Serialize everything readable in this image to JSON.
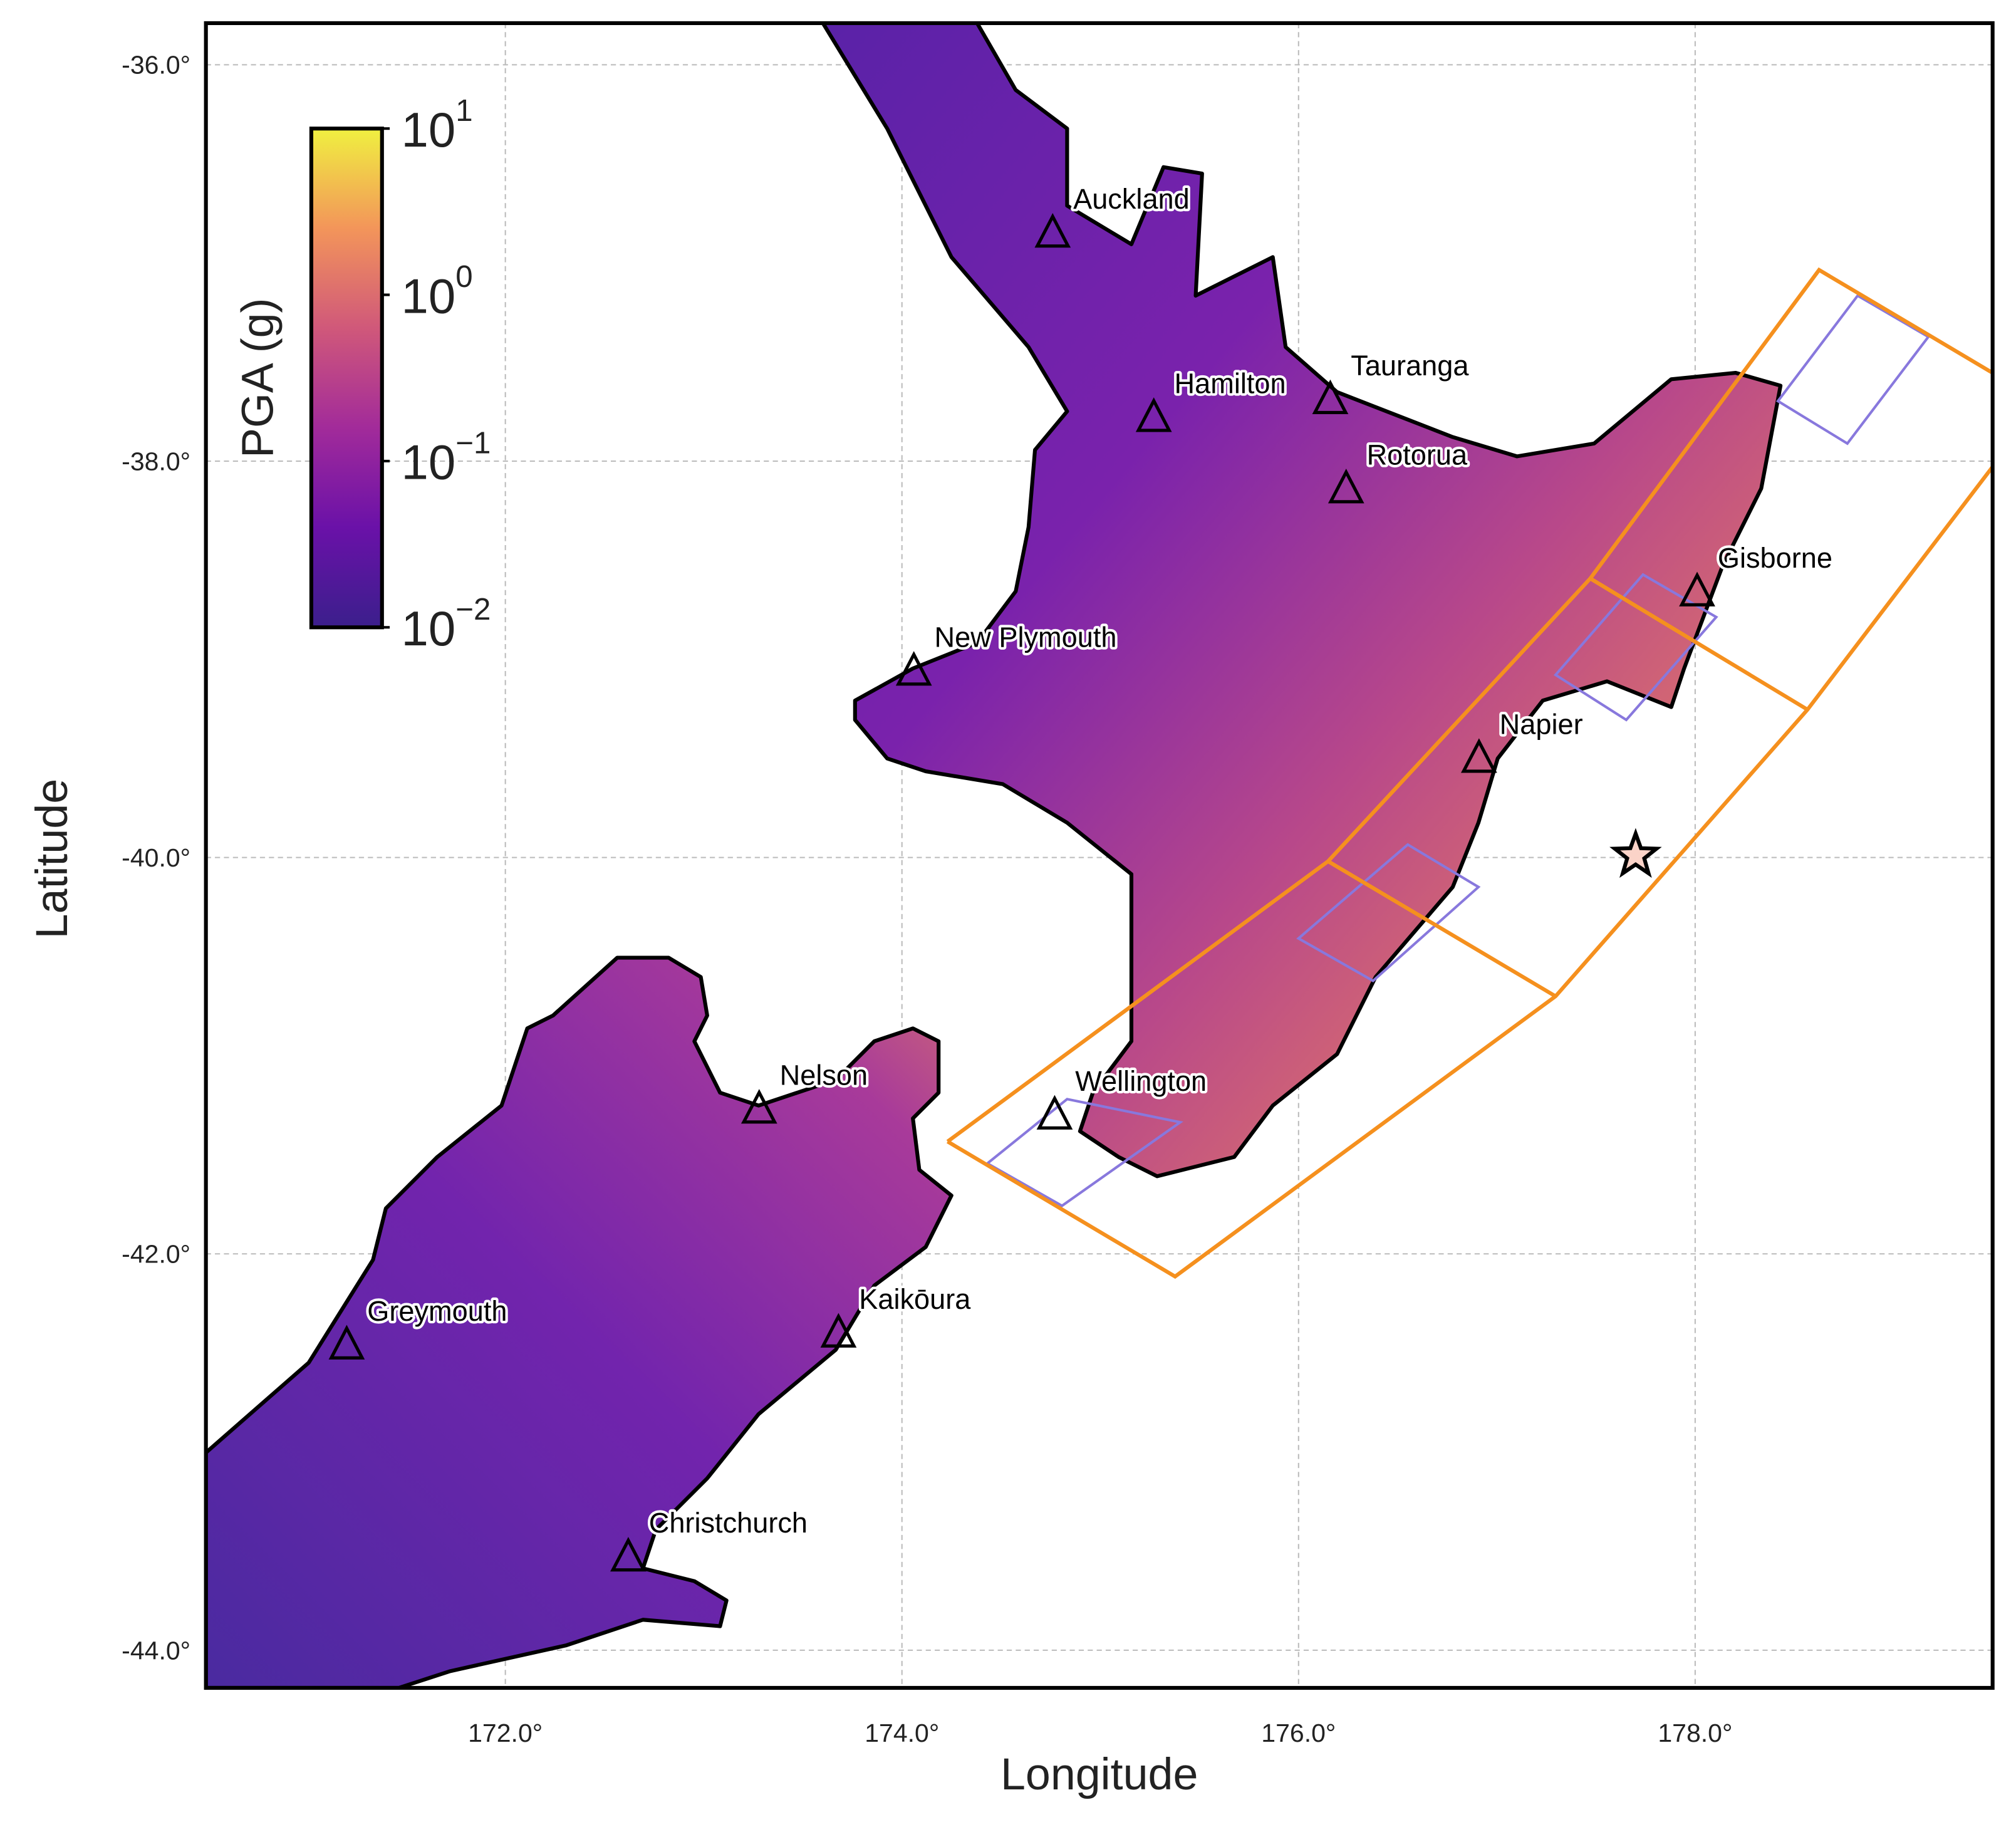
{
  "chart_data": {
    "type": "map",
    "xlabel": "Longitude",
    "ylabel": "Latitude",
    "xlim": [
      170.49,
      179.5
    ],
    "ylim": [
      -44.19,
      -35.79
    ],
    "xticks": [
      {
        "value": 172,
        "label": "172.0°"
      },
      {
        "value": 174,
        "label": "174.0°"
      },
      {
        "value": 176,
        "label": "176.0°"
      },
      {
        "value": 178,
        "label": "178.0°"
      }
    ],
    "yticks": [
      {
        "value": -36,
        "label": "-36.0°"
      },
      {
        "value": -38,
        "label": "-38.0°"
      },
      {
        "value": -40,
        "label": "-40.0°"
      },
      {
        "value": -42,
        "label": "-42.0°"
      },
      {
        "value": -44,
        "label": "-44.0°"
      }
    ],
    "grid": true,
    "cities": [
      {
        "name": "Auckland",
        "lon": 174.76,
        "lat": -36.85
      },
      {
        "name": "Hamilton",
        "lon": 175.27,
        "lat": -37.78
      },
      {
        "name": "Tauranga",
        "lon": 176.16,
        "lat": -37.69
      },
      {
        "name": "Rotorua",
        "lon": 176.24,
        "lat": -38.14
      },
      {
        "name": "Gisborne",
        "lon": 178.01,
        "lat": -38.66
      },
      {
        "name": "New Plymouth",
        "lon": 174.06,
        "lat": -39.06
      },
      {
        "name": "Napier",
        "lon": 176.91,
        "lat": -39.5
      },
      {
        "name": "Wellington",
        "lon": 174.77,
        "lat": -41.3
      },
      {
        "name": "Nelson",
        "lon": 173.28,
        "lat": -41.27
      },
      {
        "name": "Kaikōura",
        "lon": 173.68,
        "lat": -42.4
      },
      {
        "name": "Greymouth",
        "lon": 171.2,
        "lat": -42.46
      },
      {
        "name": "Christchurch",
        "lon": 172.62,
        "lat": -43.53
      }
    ],
    "epicenter": {
      "lon": 177.7,
      "lat": -39.99
    },
    "colorbar": {
      "label": "PGA (g)",
      "scale": "log",
      "lim": [
        0.01,
        10
      ],
      "ticks": [
        {
          "value": 0.01,
          "label": "10",
          "exponent": "−2"
        },
        {
          "value": 0.1,
          "label": "10",
          "exponent": "−1"
        },
        {
          "value": 1,
          "label": "10",
          "exponent": "0"
        },
        {
          "value": 10,
          "label": "10",
          "exponent": "1"
        }
      ]
    }
  }
}
